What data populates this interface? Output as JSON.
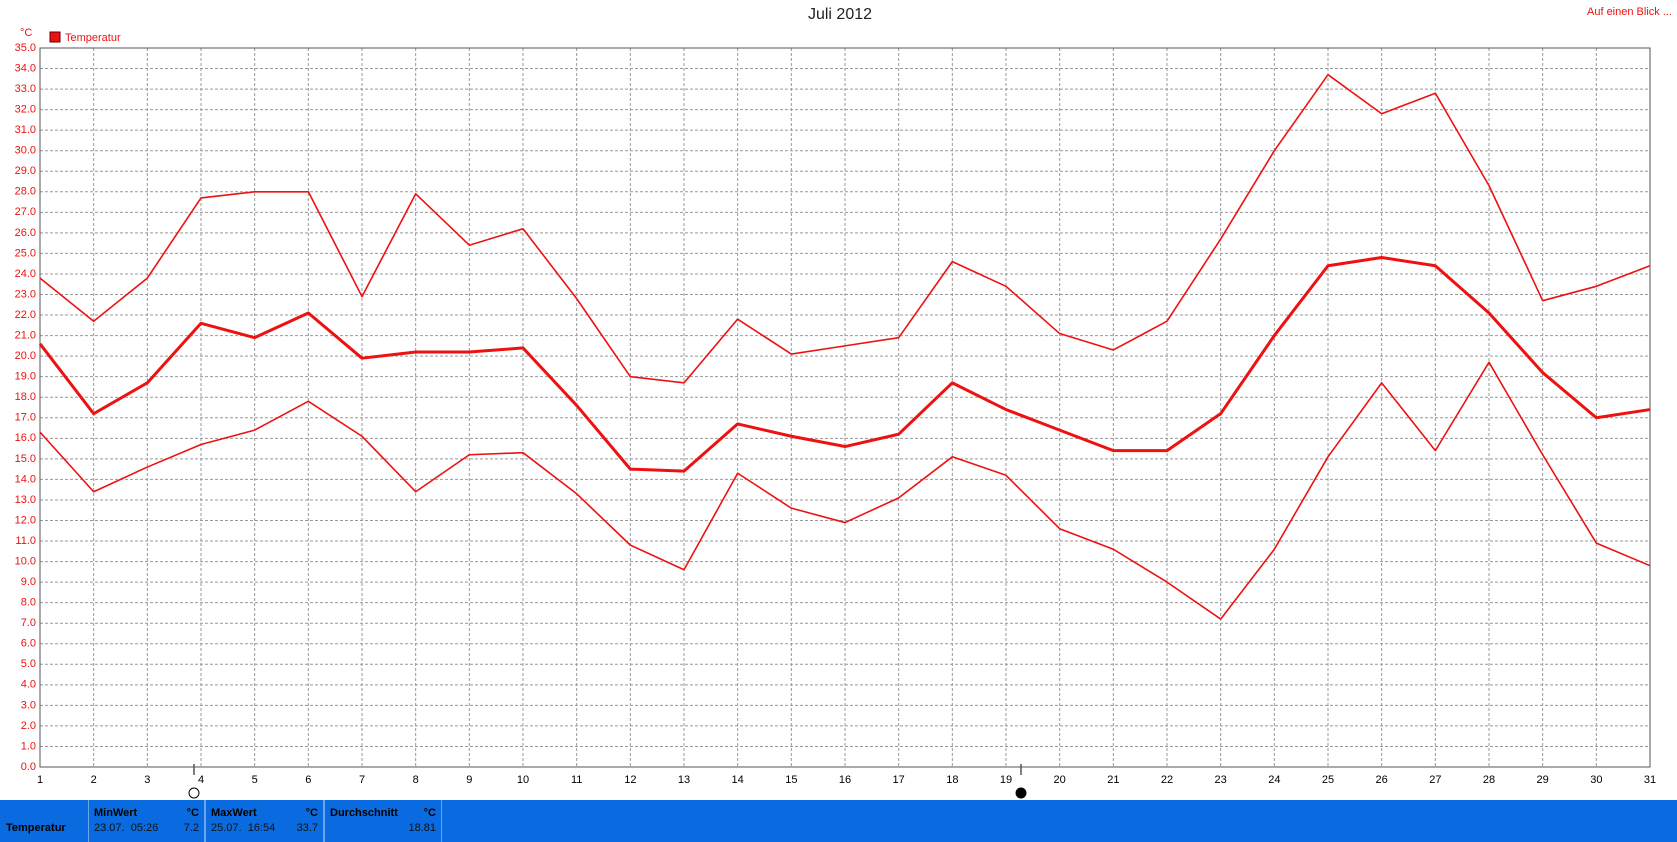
{
  "chart_data": {
    "type": "line",
    "title": "Juli 2012",
    "y_label": "°C",
    "legend": "Temperatur",
    "link": "Auf einen Blick ...",
    "x": [
      1,
      2,
      3,
      4,
      5,
      6,
      7,
      8,
      9,
      10,
      11,
      12,
      13,
      14,
      15,
      16,
      17,
      18,
      19,
      20,
      21,
      22,
      23,
      24,
      25,
      26,
      27,
      28,
      29,
      30,
      31
    ],
    "xlim": [
      1,
      31
    ],
    "xticks": [
      1,
      2,
      3,
      4,
      5,
      6,
      7,
      8,
      9,
      10,
      11,
      12,
      13,
      14,
      15,
      16,
      17,
      18,
      19,
      20,
      21,
      22,
      23,
      24,
      25,
      26,
      27,
      28,
      29,
      30,
      31
    ],
    "ylim": [
      0,
      35
    ],
    "yticks": [
      {
        "value": 0,
        "label": "0.0"
      },
      {
        "value": 1,
        "label": "1.0"
      },
      {
        "value": 2,
        "label": "2.0"
      },
      {
        "value": 3,
        "label": "3.0"
      },
      {
        "value": 4,
        "label": "4.0"
      },
      {
        "value": 5,
        "label": "5.0"
      },
      {
        "value": 6,
        "label": "6.0"
      },
      {
        "value": 7,
        "label": "7.0"
      },
      {
        "value": 8,
        "label": "8.0"
      },
      {
        "value": 9,
        "label": "9.0"
      },
      {
        "value": 10,
        "label": "10.0"
      },
      {
        "value": 11,
        "label": "11.0"
      },
      {
        "value": 12,
        "label": "12.0"
      },
      {
        "value": 13,
        "label": "13.0"
      },
      {
        "value": 14,
        "label": "14.0"
      },
      {
        "value": 15,
        "label": "15.0"
      },
      {
        "value": 16,
        "label": "16.0"
      },
      {
        "value": 17,
        "label": "17.0"
      },
      {
        "value": 18,
        "label": "18.0"
      },
      {
        "value": 19,
        "label": "19.0"
      },
      {
        "value": 20,
        "label": "20.0"
      },
      {
        "value": 21,
        "label": "21.0"
      },
      {
        "value": 22,
        "label": "22.0"
      },
      {
        "value": 23,
        "label": "23.0"
      },
      {
        "value": 24,
        "label": "24.0"
      },
      {
        "value": 25,
        "label": "25.0"
      },
      {
        "value": 26,
        "label": "26.0"
      },
      {
        "value": 27,
        "label": "27.0"
      },
      {
        "value": 28,
        "label": "28.0"
      },
      {
        "value": 29,
        "label": "29.0"
      },
      {
        "value": 30,
        "label": "30.0"
      },
      {
        "value": 31,
        "label": "31.0"
      },
      {
        "value": 32,
        "label": "32.0"
      },
      {
        "value": 33,
        "label": "33.0"
      },
      {
        "value": 34,
        "label": "34.0"
      },
      {
        "value": 35,
        "label": "35.0"
      }
    ],
    "grid": true,
    "series": [
      {
        "color": "#ee1111",
        "line_width": 1.6,
        "values": [
          23.8,
          21.7,
          23.8,
          27.7,
          28.0,
          28.0,
          22.9,
          27.9,
          25.4,
          26.2,
          22.8,
          19.0,
          18.7,
          21.8,
          20.1,
          20.5,
          20.9,
          24.6,
          23.4,
          21.1,
          20.3,
          21.7,
          25.7,
          30.0,
          33.7,
          31.8,
          32.8,
          28.3,
          22.7,
          23.4,
          24.4
        ]
      },
      {
        "color": "#ee1111",
        "line_width": 3,
        "values": [
          20.6,
          17.2,
          18.7,
          21.6,
          20.9,
          22.1,
          19.9,
          20.2,
          20.2,
          20.4,
          17.6,
          14.5,
          14.4,
          16.7,
          16.1,
          15.6,
          16.2,
          18.7,
          17.4,
          16.4,
          15.4,
          15.4,
          17.2,
          21.0,
          24.4,
          24.8,
          24.4,
          22.1,
          19.2,
          17.0,
          17.4
        ]
      },
      {
        "color": "#ee1111",
        "line_width": 1.6,
        "values": [
          16.3,
          13.4,
          14.6,
          15.7,
          16.4,
          17.8,
          16.1,
          13.4,
          15.2,
          15.3,
          13.3,
          10.8,
          9.6,
          14.3,
          12.6,
          11.9,
          13.1,
          15.1,
          14.2,
          11.6,
          10.6,
          9.0,
          7.2,
          10.6,
          15.1,
          18.7,
          15.4,
          19.7,
          15.2,
          10.9,
          9.8
        ]
      }
    ]
  },
  "stats": {
    "row_label": "Temperatur",
    "columns": [
      {
        "title": "MinWert",
        "unit": "°C",
        "time": "23.07.  05:26",
        "value": 7.2
      },
      {
        "title": "MaxWert",
        "unit": "°C",
        "time": "25.07.  16:54",
        "value": 33.7
      },
      {
        "title": "Durchschnitt",
        "unit": "°C",
        "value": 18.81
      }
    ]
  }
}
